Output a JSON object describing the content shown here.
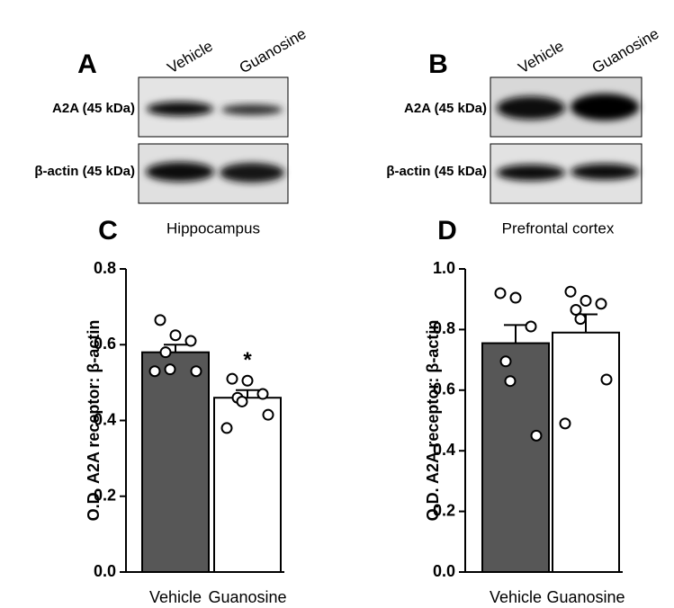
{
  "blots": [
    {
      "panel": "A",
      "lanes": [
        "Vehicle",
        "Guanosine"
      ],
      "rows": [
        "A2A (45 kDa)",
        "β-actin (45 kDa)"
      ]
    },
    {
      "panel": "B",
      "lanes": [
        "Vehicle",
        "Guanosine"
      ],
      "rows": [
        "A2A (45 kDa)",
        "β-actin (45 kDa)"
      ]
    }
  ],
  "chart_data": [
    {
      "type": "bar",
      "panel": "C",
      "title": "Hippocampus",
      "y_label": "O.D. A2A receptor: β-actin",
      "categories": [
        "Vehicle",
        "Guanosine"
      ],
      "values": [
        0.58,
        0.46
      ],
      "errors": [
        0.02,
        0.02
      ],
      "points": [
        [
          0.665,
          0.625,
          0.61,
          0.58,
          0.535,
          0.53,
          0.53
        ],
        [
          0.51,
          0.505,
          0.47,
          0.46,
          0.45,
          0.415,
          0.38
        ]
      ],
      "colors": [
        "#575757",
        "#ffffff"
      ],
      "annotation": "*",
      "ylim": [
        0,
        0.8
      ],
      "yticks": [
        {
          "value": 0,
          "label": "0.0"
        },
        0.2,
        0.4,
        0.6,
        0.8
      ]
    },
    {
      "type": "bar",
      "panel": "D",
      "title": "Prefrontal cortex",
      "y_label": "O.D. A2A receptor: β-actin",
      "categories": [
        "Vehicle",
        "Guanosine"
      ],
      "values": [
        0.755,
        0.79
      ],
      "errors": [
        0.06,
        0.06
      ],
      "points": [
        [
          0.92,
          0.905,
          0.81,
          0.695,
          0.63,
          0.45
        ],
        [
          0.925,
          0.895,
          0.885,
          0.865,
          0.835,
          0.635,
          0.49
        ]
      ],
      "colors": [
        "#575757",
        "#ffffff"
      ],
      "ylim": [
        0,
        1
      ],
      "yticks": [
        {
          "value": 0,
          "label": "0.0"
        },
        0.2,
        0.4,
        0.6,
        0.8,
        {
          "value": 1,
          "label": "1.0"
        }
      ]
    }
  ]
}
